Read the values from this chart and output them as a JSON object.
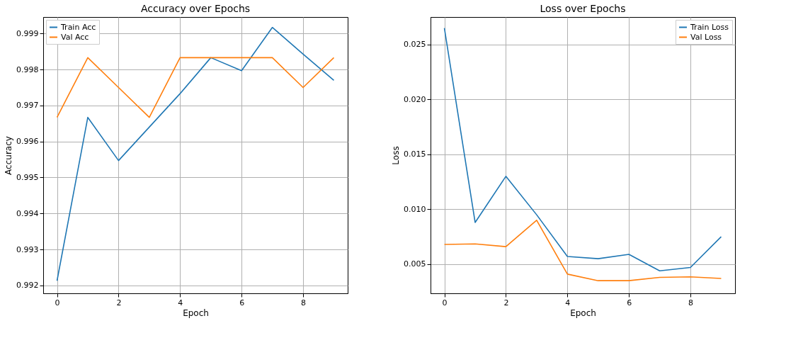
{
  "chart_data": [
    {
      "type": "line",
      "title": "Accuracy over Epochs",
      "xlabel": "Epoch",
      "ylabel": "Accuracy",
      "x": [
        0,
        1,
        2,
        3,
        4,
        5,
        6,
        7,
        8,
        9
      ],
      "xlim": [
        -0.45,
        9.45
      ],
      "xticks": [
        0,
        2,
        4,
        6,
        8
      ],
      "ylim": [
        0.99178,
        0.99946
      ],
      "yticks": [
        0.992,
        0.993,
        0.994,
        0.995,
        0.996,
        0.997,
        0.998,
        0.999
      ],
      "grid": true,
      "legend": "top left",
      "line_style": "solid",
      "marker": "none",
      "series": [
        {
          "name": "Train Acc",
          "color": "#1f77b4",
          "values": [
            0.99213,
            0.99667,
            0.99547,
            0.9964,
            0.99733,
            0.99833,
            0.99797,
            0.99917,
            0.99843,
            0.9977
          ]
        },
        {
          "name": "Val Acc",
          "color": "#ff7f0e",
          "values": [
            0.99667,
            0.99833,
            0.9975,
            0.99667,
            0.99833,
            0.99833,
            0.99833,
            0.99833,
            0.9975,
            0.99833
          ]
        }
      ]
    },
    {
      "type": "line",
      "title": "Loss over Epochs",
      "xlabel": "Epoch",
      "ylabel": "Loss",
      "x": [
        0,
        1,
        2,
        3,
        4,
        5,
        6,
        7,
        8,
        9
      ],
      "xlim": [
        -0.45,
        9.45
      ],
      "xticks": [
        0,
        2,
        4,
        6,
        8
      ],
      "ylim": [
        0.00235,
        0.0275
      ],
      "yticks": [
        0.005,
        {
          "value": 0.01,
          "label": "0.010"
        },
        0.015,
        {
          "value": 0.02,
          "label": "0.020"
        },
        0.025
      ],
      "grid": true,
      "legend": "top right",
      "line_style": "solid",
      "marker": "none",
      "series": [
        {
          "name": "Train Loss",
          "color": "#1f77b4",
          "values": [
            0.0265,
            0.0088,
            0.013,
            0.0095,
            0.0057,
            0.0055,
            0.0059,
            0.0044,
            0.0047,
            0.0075
          ]
        },
        {
          "name": "Val Loss",
          "color": "#ff7f0e",
          "values": [
            0.0068,
            0.00685,
            0.0066,
            0.009,
            0.0041,
            0.0035,
            0.0035,
            0.0038,
            0.00385,
            0.0037
          ]
        }
      ]
    }
  ]
}
